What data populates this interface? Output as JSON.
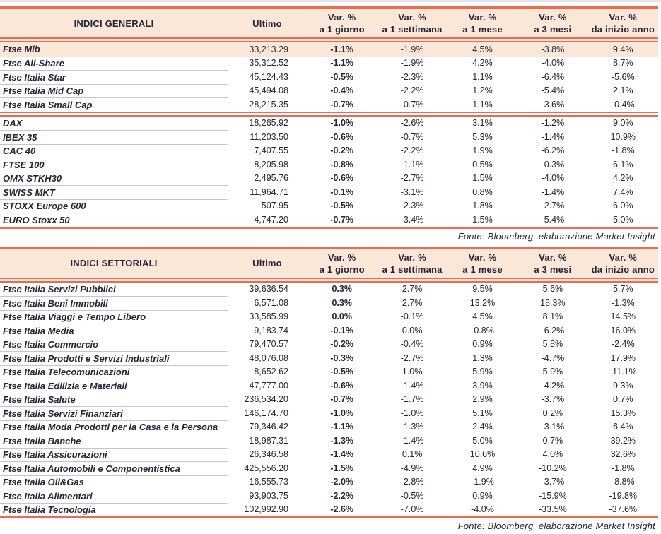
{
  "colors": {
    "accent": "#ED6A50",
    "header_background": "#FBE7D8",
    "highlight_background": "#FBE7D8",
    "text": "#232539",
    "row_separator": "#C6C6C6"
  },
  "columns": {
    "ultimo": "Ultimo",
    "vars": [
      {
        "l1": "Var. %",
        "l2": "a 1 giorno"
      },
      {
        "l1": "Var. %",
        "l2": "a 1 settimana"
      },
      {
        "l1": "Var. %",
        "l2": "a 1 mese"
      },
      {
        "l1": "Var. %",
        "l2": "a 3 mesi"
      },
      {
        "l1": "Var. %",
        "l2": "da inizio anno"
      }
    ]
  },
  "tables": [
    {
      "title": "INDICI GENERALI",
      "source": "Fonte: Bloomberg, elaborazione Market Insight",
      "groups": [
        {
          "rows": [
            {
              "name": "Ftse Mib",
              "ultimo": "33,213.29",
              "vars": [
                "-1.1%",
                "-1.9%",
                "4.5%",
                "-3.8%",
                "9.4%"
              ],
              "highlight": true
            },
            {
              "name": "Ftse All-Share",
              "ultimo": "35,312.52",
              "vars": [
                "-1.1%",
                "-1.9%",
                "4.2%",
                "-4.0%",
                "8.7%"
              ]
            },
            {
              "name": "Ftse Italia Star",
              "ultimo": "45,124.43",
              "vars": [
                "-0.5%",
                "-2.3%",
                "1.1%",
                "-6.4%",
                "-5.6%"
              ]
            },
            {
              "name": "Ftse Italia Mid Cap",
              "ultimo": "45,494.08",
              "vars": [
                "-0.4%",
                "-2.2%",
                "1.2%",
                "-5.4%",
                "2.1%"
              ]
            },
            {
              "name": "Ftse Italia Small Cap",
              "ultimo": "28,215.35",
              "vars": [
                "-0.7%",
                "-0.7%",
                "1.1%",
                "-3.6%",
                "-0.4%"
              ]
            }
          ]
        },
        {
          "rows": [
            {
              "name": "DAX",
              "ultimo": "18,265.92",
              "vars": [
                "-1.0%",
                "-2.6%",
                "3.1%",
                "-1.2%",
                "9.0%"
              ]
            },
            {
              "name": "IBEX 35",
              "ultimo": "11,203.50",
              "vars": [
                "-0.6%",
                "-0.7%",
                "5.3%",
                "-1.4%",
                "10.9%"
              ]
            },
            {
              "name": "CAC 40",
              "ultimo": "7,407.55",
              "vars": [
                "-0.2%",
                "-2.2%",
                "1.9%",
                "-6.2%",
                "-1.8%"
              ]
            },
            {
              "name": "FTSE 100",
              "ultimo": "8,205.98",
              "vars": [
                "-0.8%",
                "-1.1%",
                "0.5%",
                "-0.3%",
                "6.1%"
              ]
            },
            {
              "name": "OMX STKH30",
              "ultimo": "2,495.76",
              "vars": [
                "-0.6%",
                "-2.7%",
                "1.5%",
                "-4.0%",
                "4.2%"
              ]
            },
            {
              "name": "SWISS MKT",
              "ultimo": "11,964.71",
              "vars": [
                "-0.1%",
                "-3.1%",
                "0.8%",
                "-1.4%",
                "7.4%"
              ]
            },
            {
              "name": "STOXX Europe 600",
              "ultimo": "507.95",
              "vars": [
                "-0.5%",
                "-2.3%",
                "1.8%",
                "-2.7%",
                "6.0%"
              ]
            },
            {
              "name": "EURO Stoxx 50",
              "ultimo": "4,747.20",
              "vars": [
                "-0.7%",
                "-3.4%",
                "1.5%",
                "-5.4%",
                "5.0%"
              ]
            }
          ]
        }
      ]
    },
    {
      "title": "INDICI SETTORIALI",
      "source": "Fonte: Bloomberg, elaborazione Market Insight",
      "groups": [
        {
          "rows": [
            {
              "name": "Ftse Italia Servizi Pubblici",
              "ultimo": "39,636.54",
              "vars": [
                "0.3%",
                "2.7%",
                "9.5%",
                "5.6%",
                "5.7%"
              ]
            },
            {
              "name": "Ftse Italia Beni Immobili",
              "ultimo": "6,571.08",
              "vars": [
                "0.3%",
                "2.7%",
                "13.2%",
                "18.3%",
                "-1.3%"
              ]
            },
            {
              "name": "Ftse Italia Viaggi e Tempo Libero",
              "ultimo": "33,585.99",
              "vars": [
                "0.0%",
                "-0.1%",
                "4.5%",
                "8.1%",
                "14.5%"
              ]
            },
            {
              "name": "Ftse Italia Media",
              "ultimo": "9,183.74",
              "vars": [
                "-0.1%",
                "0.0%",
                "-0.8%",
                "-6.2%",
                "16.0%"
              ]
            },
            {
              "name": "Ftse Italia Commercio",
              "ultimo": "79,470.57",
              "vars": [
                "-0.2%",
                "-0.4%",
                "0.9%",
                "5.8%",
                "-2.4%"
              ]
            },
            {
              "name": "Ftse Italia Prodotti e Servizi Industriali",
              "ultimo": "48,076.08",
              "vars": [
                "-0.3%",
                "-2.7%",
                "1.3%",
                "-4.7%",
                "17.9%"
              ]
            },
            {
              "name": "Ftse Italia Telecomunicazioni",
              "ultimo": "8,652.62",
              "vars": [
                "-0.5%",
                "1.0%",
                "5.9%",
                "5.9%",
                "-11.1%"
              ]
            },
            {
              "name": "Ftse Italia Edilizia e Materiali",
              "ultimo": "47,777.00",
              "vars": [
                "-0.6%",
                "-1.4%",
                "3.9%",
                "-4.2%",
                "9.3%"
              ]
            },
            {
              "name": "Ftse Italia Salute",
              "ultimo": "236,534.20",
              "vars": [
                "-0.7%",
                "-1.7%",
                "2.9%",
                "-3.7%",
                "0.7%"
              ]
            },
            {
              "name": "Ftse Italia Servizi Finanziari",
              "ultimo": "146,174.70",
              "vars": [
                "-1.0%",
                "-1.0%",
                "5.1%",
                "0.2%",
                "15.3%"
              ]
            },
            {
              "name": "Ftse Italia Moda Prodotti per la Casa e la Persona",
              "ultimo": "79,346.42",
              "vars": [
                "-1.1%",
                "-1.3%",
                "2.4%",
                "-3.1%",
                "6.4%"
              ]
            },
            {
              "name": "Ftse Italia Banche",
              "ultimo": "18,987.31",
              "vars": [
                "-1.3%",
                "-1.4%",
                "5.0%",
                "0.7%",
                "39.2%"
              ]
            },
            {
              "name": "Ftse Italia Assicurazioni",
              "ultimo": "26,346.58",
              "vars": [
                "-1.4%",
                "0.1%",
                "10.6%",
                "4.0%",
                "32.6%"
              ]
            },
            {
              "name": "Ftse Italia Automobili e Componentistica",
              "ultimo": "425,556.20",
              "vars": [
                "-1.5%",
                "-4.9%",
                "4.9%",
                "-10.2%",
                "-1.8%"
              ]
            },
            {
              "name": "Ftse Italia Oil&Gas",
              "ultimo": "16,555.73",
              "vars": [
                "-2.0%",
                "-2.8%",
                "-1.9%",
                "-3.7%",
                "-8.8%"
              ]
            },
            {
              "name": "Ftse Italia Alimentari",
              "ultimo": "93,903.75",
              "vars": [
                "-2.2%",
                "-0.5%",
                "0.9%",
                "-15.9%",
                "-19.8%"
              ]
            },
            {
              "name": "Ftse Italia Tecnologia",
              "ultimo": "102,992.90",
              "vars": [
                "-2.6%",
                "-7.0%",
                "-4.0%",
                "-33.5%",
                "-37.6%"
              ]
            }
          ]
        }
      ]
    }
  ]
}
